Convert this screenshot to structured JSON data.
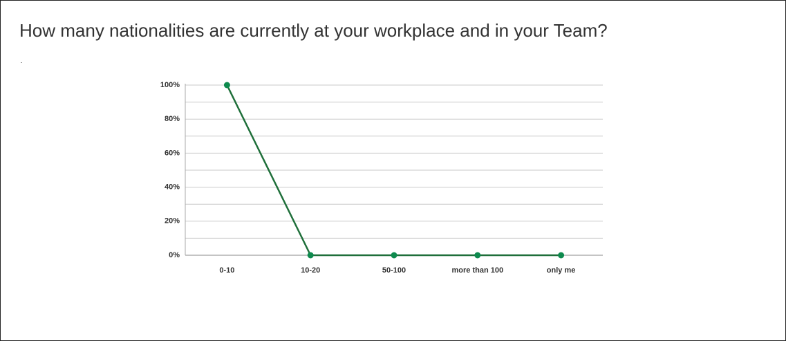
{
  "chart_data": {
    "type": "line",
    "title": "How many nationalities are currently at your workplace and in your Team?",
    "categories": [
      "0-10",
      "10-20",
      "50-100",
      "more than 100",
      "only me"
    ],
    "series": [
      {
        "color": "#1f6f3a",
        "marker_color": "#0e8a4e",
        "values": [
          100,
          0,
          0,
          0,
          0
        ]
      }
    ],
    "ylim": [
      0,
      100
    ],
    "yticks": [
      {
        "value": 0,
        "label": "0%"
      },
      {
        "value": 20,
        "label": "20%"
      },
      {
        "value": 40,
        "label": "40%"
      },
      {
        "value": 60,
        "label": "60%"
      },
      {
        "value": 80,
        "label": "80%"
      },
      {
        "value": 100,
        "label": "100%"
      }
    ],
    "minor_yticks": [
      10,
      30,
      50,
      70,
      90
    ],
    "grid": true
  }
}
